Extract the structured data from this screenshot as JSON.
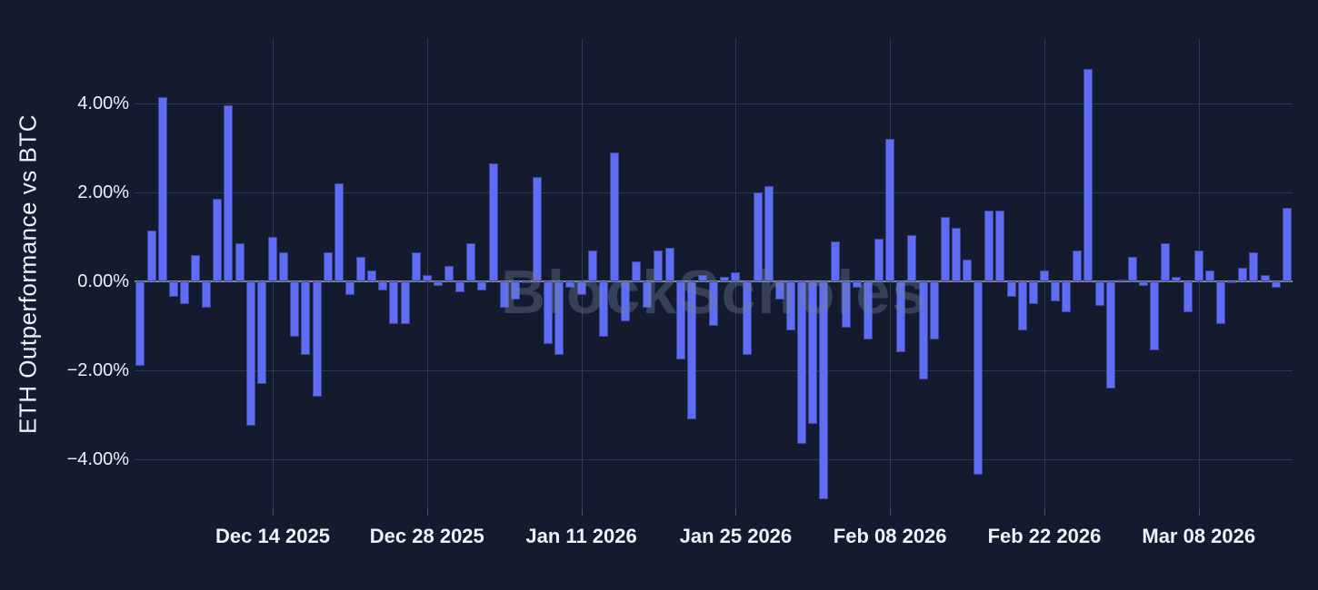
{
  "chart_data": {
    "type": "bar",
    "title": "",
    "ylabel": "ETH Outperformance vs BTC",
    "xlabel": "",
    "watermark": "BlockScholes",
    "legend": null,
    "grid": true,
    "background_color": "#141b2f",
    "bar_color": "#5f6cf4",
    "gridline_color": "#2b3a5a",
    "zero_line_color": "#848b9b",
    "text_color": "#eef1f6",
    "ylim": [
      -5.15,
      5.45
    ],
    "y_ticks": [
      {
        "label": "4.00%",
        "value": 4
      },
      {
        "label": "2.00%",
        "value": 2
      },
      {
        "label": "0.00%",
        "value": 0
      },
      {
        "label": "−2.00%",
        "value": -2
      },
      {
        "label": "−4.00%",
        "value": -4
      }
    ],
    "x_ticks": [
      {
        "label": "Dec 14 2025",
        "day_index": 12
      },
      {
        "label": "Dec 28 2025",
        "day_index": 26
      },
      {
        "label": "Jan 11 2026",
        "day_index": 40
      },
      {
        "label": "Jan 25 2026",
        "day_index": 54
      },
      {
        "label": "Feb 08 2026",
        "day_index": 68
      },
      {
        "label": "Feb 22 2026",
        "day_index": 82
      },
      {
        "label": "Mar 08 2026",
        "day_index": 96
      }
    ],
    "values_unit": "percent",
    "values": [
      -1.9,
      1.15,
      4.15,
      -0.35,
      -0.5,
      0.6,
      -0.6,
      1.85,
      3.95,
      0.85,
      -3.25,
      -2.3,
      1.0,
      0.65,
      -1.25,
      -1.65,
      -2.6,
      0.65,
      2.2,
      -0.3,
      0.55,
      0.25,
      -0.2,
      -0.95,
      -0.95,
      0.65,
      0.15,
      -0.1,
      0.35,
      -0.25,
      0.85,
      -0.2,
      2.65,
      -0.6,
      -0.4,
      -0.05,
      2.35,
      -1.4,
      -1.65,
      -0.15,
      -0.3,
      0.7,
      -1.25,
      2.9,
      -0.9,
      0.45,
      -0.6,
      0.7,
      0.75,
      -1.75,
      -3.1,
      0.15,
      -1.0,
      0.1,
      0.2,
      -1.65,
      2.0,
      2.15,
      -0.4,
      -1.1,
      -3.65,
      -3.2,
      -4.9,
      0.9,
      -1.05,
      -0.15,
      -1.3,
      0.95,
      3.2,
      -1.6,
      1.05,
      -2.2,
      -1.3,
      1.45,
      1.2,
      0.5,
      -4.35,
      1.6,
      1.6,
      -0.35,
      -1.1,
      -0.5,
      0.25,
      -0.45,
      -0.7,
      0.7,
      4.78,
      -0.55,
      -2.4,
      0.05,
      0.55,
      -0.1,
      -1.55,
      0.85,
      0.1,
      -0.7,
      0.7,
      0.25,
      -0.95,
      -0.05,
      0.3,
      0.65,
      0.15,
      -0.15,
      1.65
    ]
  }
}
